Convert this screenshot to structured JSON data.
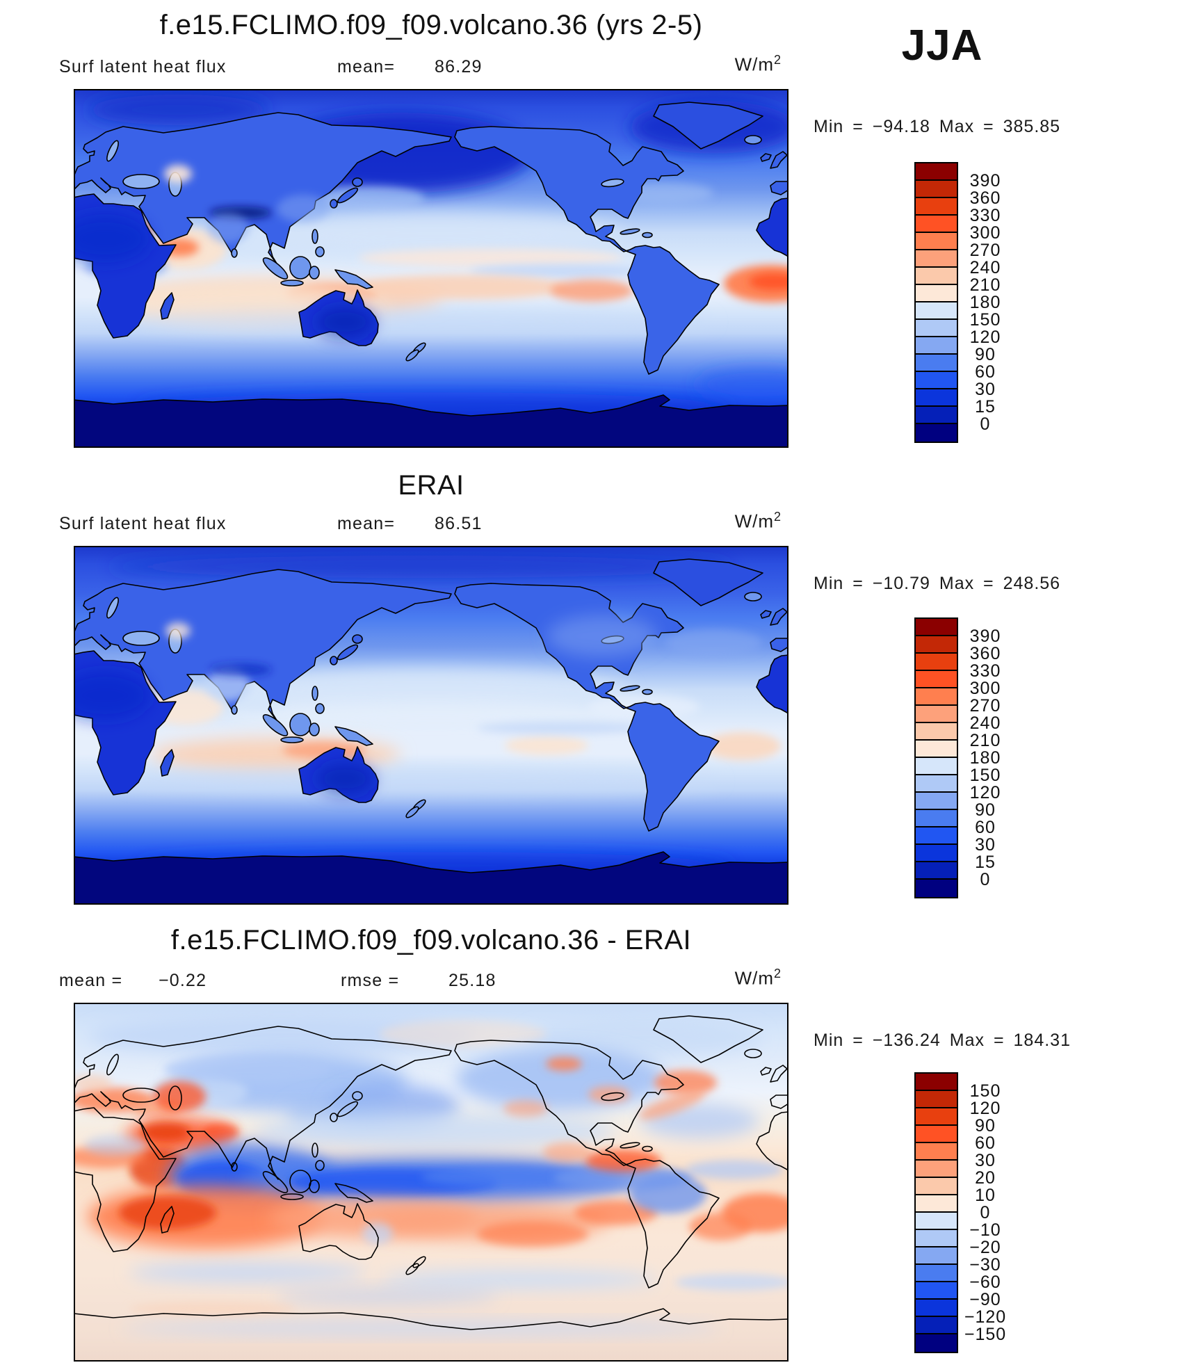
{
  "season": "JJA",
  "units": {
    "base": "W/m",
    "exp": "2"
  },
  "panels": [
    {
      "title": "f.e15.FCLIMO.f09_f09.volcano.36 (yrs 2-5)",
      "variable": "Surf latent heat flux",
      "mean_label": "mean=",
      "mean": "86.29",
      "stats": "Min = −94.18 Max = 385.85"
    },
    {
      "title": "ERAI",
      "variable": "Surf latent heat flux",
      "mean_label": "mean=",
      "mean": "86.51",
      "stats": "Min = −10.79 Max = 248.56"
    },
    {
      "title": "f.e15.FCLIMO.f09_f09.volcano.36 - ERAI",
      "mean_label": "mean =",
      "mean": "−0.22",
      "rmse_label": "rmse =",
      "rmse": "25.18",
      "stats": "Min = −136.24 Max = 184.31"
    }
  ],
  "colorbars": [
    {
      "labels": [
        "390",
        "360",
        "330",
        "300",
        "270",
        "240",
        "210",
        "180",
        "150",
        "120",
        "90",
        "60",
        "30",
        "15",
        "0"
      ]
    },
    {
      "labels": [
        "390",
        "360",
        "330",
        "300",
        "270",
        "240",
        "210",
        "180",
        "150",
        "120",
        "90",
        "60",
        "30",
        "15",
        "0"
      ]
    },
    {
      "labels": [
        "150",
        "120",
        "90",
        "60",
        "30",
        "20",
        "10",
        "0",
        "−10",
        "−20",
        "−30",
        "−60",
        "−90",
        "−120",
        "−150"
      ]
    }
  ],
  "palette": [
    "#8B0000",
    "#C32806",
    "#E8400F",
    "#FF5224",
    "#FF7F4F",
    "#FDA17B",
    "#FBC9AB",
    "#FDE8D8",
    "#D6E6FA",
    "#AFC9F6",
    "#85A8F2",
    "#4A7CF0",
    "#2156F2",
    "#0B35DC",
    "#0520B8",
    "#000080"
  ],
  "chart_data": {
    "type": "heatmap",
    "subtype": "global lat-lon contour maps (equirectangular, 0-360E, 90N-90S)",
    "season": "JJA",
    "variable": "Surf latent heat flux",
    "units": "W/m^2",
    "legend_position": "right of each map",
    "panels": [
      {
        "name": "f.e15.FCLIMO.f09_f09.volcano.36 (yrs 2-5)",
        "mean": 86.29,
        "min": -94.18,
        "max": 385.85,
        "contour_levels": [
          0,
          15,
          30,
          60,
          90,
          120,
          150,
          180,
          210,
          240,
          270,
          300,
          330,
          360,
          390
        ],
        "pattern": "high (orange/cream 180-270) over subtropical oceans, esp. S Indian Ocean, Arabian Sea, trade-wind Pacific and Atlantic off Brazil; low (dark blue <30) over deserts, poles, N Pacific and Southern Ocean"
      },
      {
        "name": "ERAI",
        "mean": 86.51,
        "min": -10.79,
        "max": 248.56,
        "contour_levels": [
          0,
          15,
          30,
          60,
          90,
          120,
          150,
          180,
          210,
          240,
          270,
          300,
          330,
          360,
          390
        ],
        "pattern": "similar but smoother; pale 150-210 band across subtropics, weaker maxima"
      },
      {
        "name": "f.e15.FCLIMO.f09_f09.volcano.36 - ERAI",
        "mean": -0.22,
        "rmse": 25.18,
        "min": -136.24,
        "max": 184.31,
        "contour_levels": [
          -150,
          -120,
          -90,
          -60,
          -30,
          -20,
          -10,
          0,
          10,
          20,
          30,
          60,
          90,
          120,
          150
        ],
        "pattern": "negative (blue) over N Indian Ocean/ITCZ Pacific and NH continents; positive (orange/red) band across SH subtropics, Middle East, Somali coast and tropical Atlantic"
      }
    ],
    "palette_top_to_bottom": [
      "#8B0000",
      "#C32806",
      "#E8400F",
      "#FF5224",
      "#FF7F4F",
      "#FDA17B",
      "#FBC9AB",
      "#FDE8D8",
      "#D6E6FA",
      "#AFC9F6",
      "#85A8F2",
      "#4A7CF0",
      "#2156F2",
      "#0B35DC",
      "#0520B8",
      "#000080"
    ]
  }
}
